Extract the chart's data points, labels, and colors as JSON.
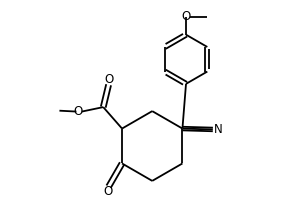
{
  "background": "#ffffff",
  "line_color": "#000000",
  "lw": 1.3,
  "figure_size": [
    3.0,
    2.16
  ],
  "dpi": 100,
  "xlim": [
    -2.5,
    2.5
  ],
  "ylim": [
    -2.0,
    2.8
  ]
}
